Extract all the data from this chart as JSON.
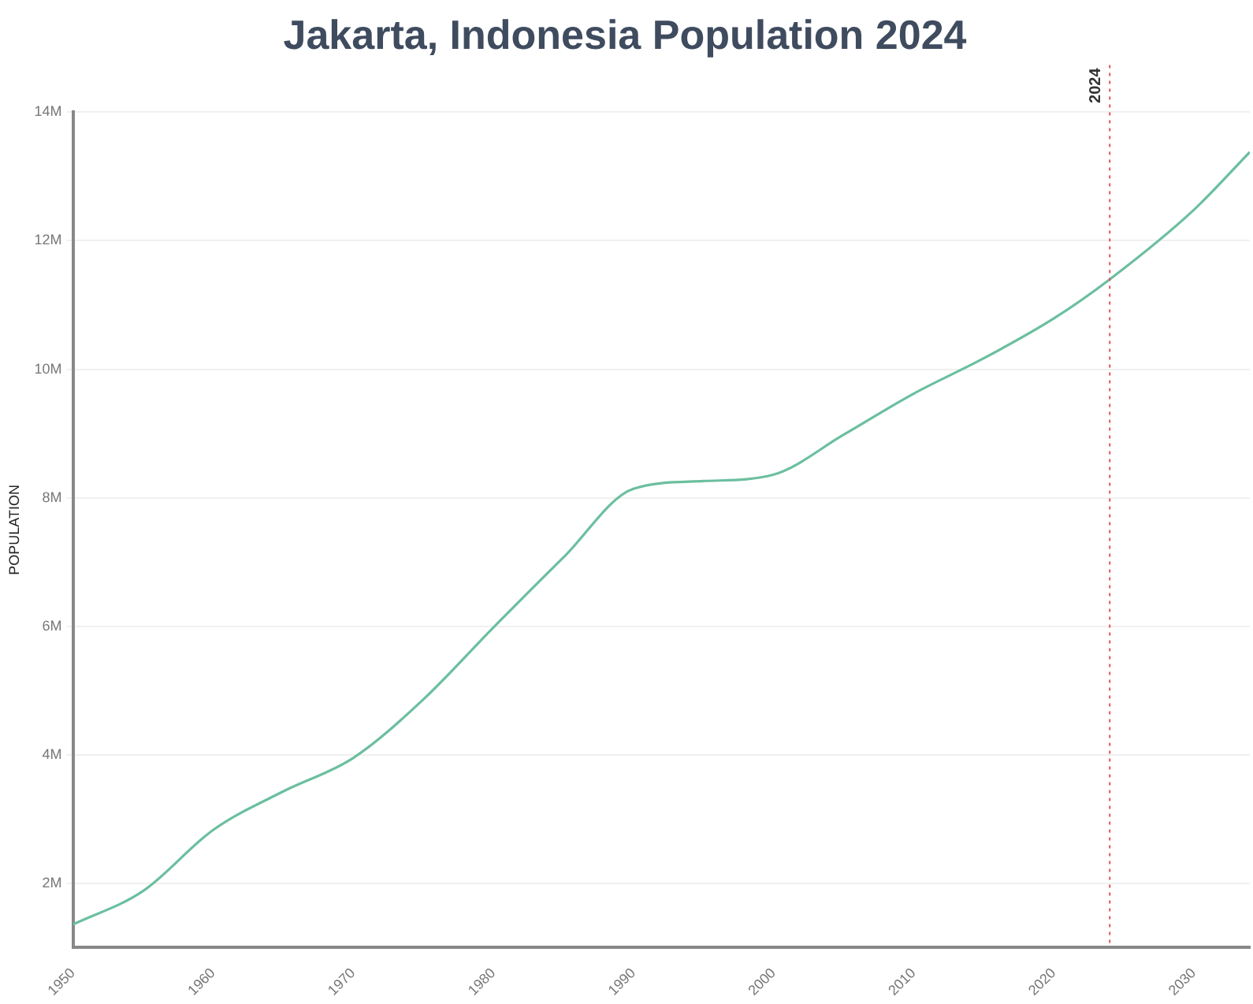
{
  "chart_data": {
    "type": "line",
    "title": "Jakarta, Indonesia Population 2024",
    "ylabel": "POPULATION",
    "x": [
      1950,
      1955,
      1960,
      1965,
      1970,
      1975,
      1980,
      1985,
      1990,
      1995,
      2000,
      2005,
      2010,
      2015,
      2020,
      2024,
      2030,
      2034
    ],
    "series": [
      {
        "color": "#6bbf9f",
        "values": [
          1.36,
          1.88,
          2.83,
          3.43,
          3.95,
          4.86,
          5.98,
          7.07,
          8.14,
          8.26,
          8.36,
          8.98,
          9.62,
          10.17,
          10.79,
          11.4,
          12.48,
          13.38
        ]
      }
    ],
    "xlim": [
      1950,
      2034
    ],
    "xticks": [
      1950,
      1960,
      1970,
      1980,
      1990,
      2000,
      2010,
      2020,
      2030
    ],
    "ylim": [
      1,
      14
    ],
    "yticks": [
      {
        "value": 2,
        "label": "2M"
      },
      {
        "value": 4,
        "label": "4M"
      },
      {
        "value": 6,
        "label": "6M"
      },
      {
        "value": 8,
        "label": "8M"
      },
      {
        "value": 10,
        "label": "10M"
      },
      {
        "value": 12,
        "label": "12M"
      },
      {
        "value": 14,
        "label": "14M"
      }
    ],
    "ref_lines": [
      {
        "axis": "x",
        "value": 2024,
        "label": "2024",
        "color": "#e8505b",
        "line_style": "dotted"
      }
    ],
    "grid": "y",
    "legend": false,
    "marker": "none",
    "line_style": "solid"
  }
}
